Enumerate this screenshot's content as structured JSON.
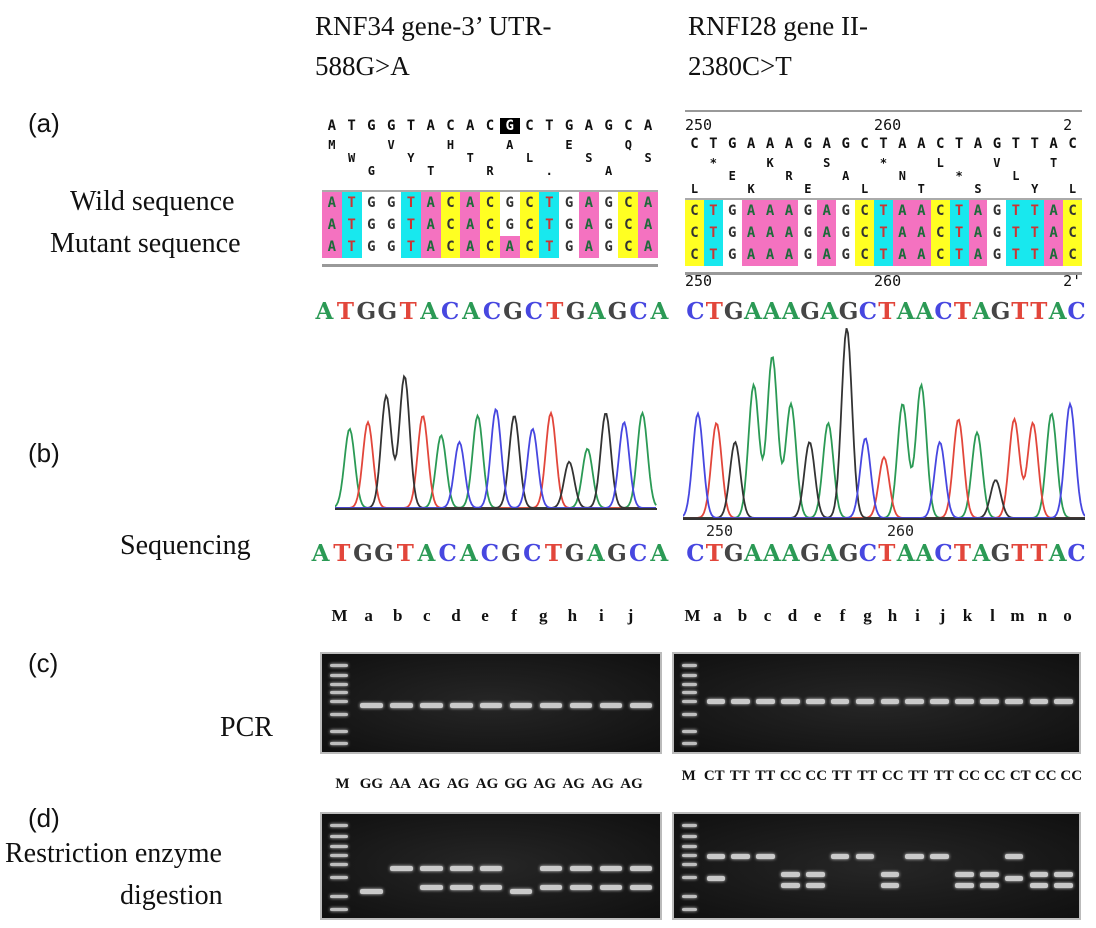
{
  "titles": {
    "left": [
      "RNF34 gene-3’  UTR-",
      "588G>A"
    ],
    "right": [
      "RNFI28 gene II-",
      "2380C>T"
    ]
  },
  "panels": {
    "a": "(a)",
    "b": "(b)",
    "c": "(c)",
    "d": "(d)"
  },
  "row_labels": {
    "wild": "Wild sequence",
    "mutant": "Mutant sequence",
    "sequencing": "Sequencing",
    "pcr": "PCR",
    "digestion_1": "Restriction enzyme",
    "digestion_2": "digestion"
  },
  "left_alignment": {
    "consensus": "ATGGTACACGCTGAGCA",
    "highlight_index": 9,
    "frames": [
      "M  V  H  A  E  Q ",
      " W  Y  T  L  S  S",
      "  G  T  R  .  A  "
    ],
    "rows": [
      "ATGGTACACGCTGAGCA",
      "ATGGTACACGCTGAGCA",
      "ATGGTACACACTGAGCA"
    ],
    "sequence": "ATGGTACACGCTGAGCA",
    "sequencing": "ATGGTACACGCTGAGCA"
  },
  "right_alignment": {
    "numbers_top": [
      "250",
      "260",
      "2"
    ],
    "consensus": "CTGAAAGAGCTAACTAGTTAC",
    "frames": [
      " *  K  S  *  L  V  T ",
      "  E  R  A  N  *  L   ",
      "L  K  E  L  T  S  Y L"
    ],
    "rows": [
      "CTGAAAGAGCTAACTAGTTAC",
      "CTGAAAGAGCTAACTAGTTAC",
      "CTGAAAGAGCTAACTAGTTAC"
    ],
    "numbers_bottom": [
      "250",
      "260",
      "2'"
    ],
    "sequence": "CTGAAAGAGCTAACTAGTTAC",
    "chrom_numbers": [
      "250",
      "260"
    ],
    "sequencing": "CTGAAAGAGCTAACTAGTTAC"
  },
  "base_colors": {
    "A": "#2b9a55",
    "T": "#e2463b",
    "G": "#333333",
    "C": "#4747e0"
  },
  "alignment_colors": {
    "A": "#f472c0",
    "T": "#18e8ee",
    "G": "#ffffff",
    "C": "#ffff22"
  },
  "gel_left": {
    "lanes": [
      "M",
      "a",
      "b",
      "c",
      "d",
      "e",
      "f",
      "g",
      "h",
      "i",
      "j"
    ],
    "genotypes": [
      "M",
      "GG",
      "AA",
      "AG",
      "AG",
      "AG",
      "GG",
      "AG",
      "AG",
      "AG",
      "AG"
    ]
  },
  "gel_right": {
    "lanes": [
      "M",
      "a",
      "b",
      "c",
      "d",
      "e",
      "f",
      "g",
      "h",
      "i",
      "j",
      "k",
      "l",
      "m",
      "n",
      "o"
    ],
    "genotypes": [
      "M",
      "CT",
      "TT",
      "TT",
      "CC",
      "CC",
      "TT",
      "TT",
      "CC",
      "TT",
      "TT",
      "CC",
      "CC",
      "CT",
      "CC",
      "CC"
    ]
  }
}
